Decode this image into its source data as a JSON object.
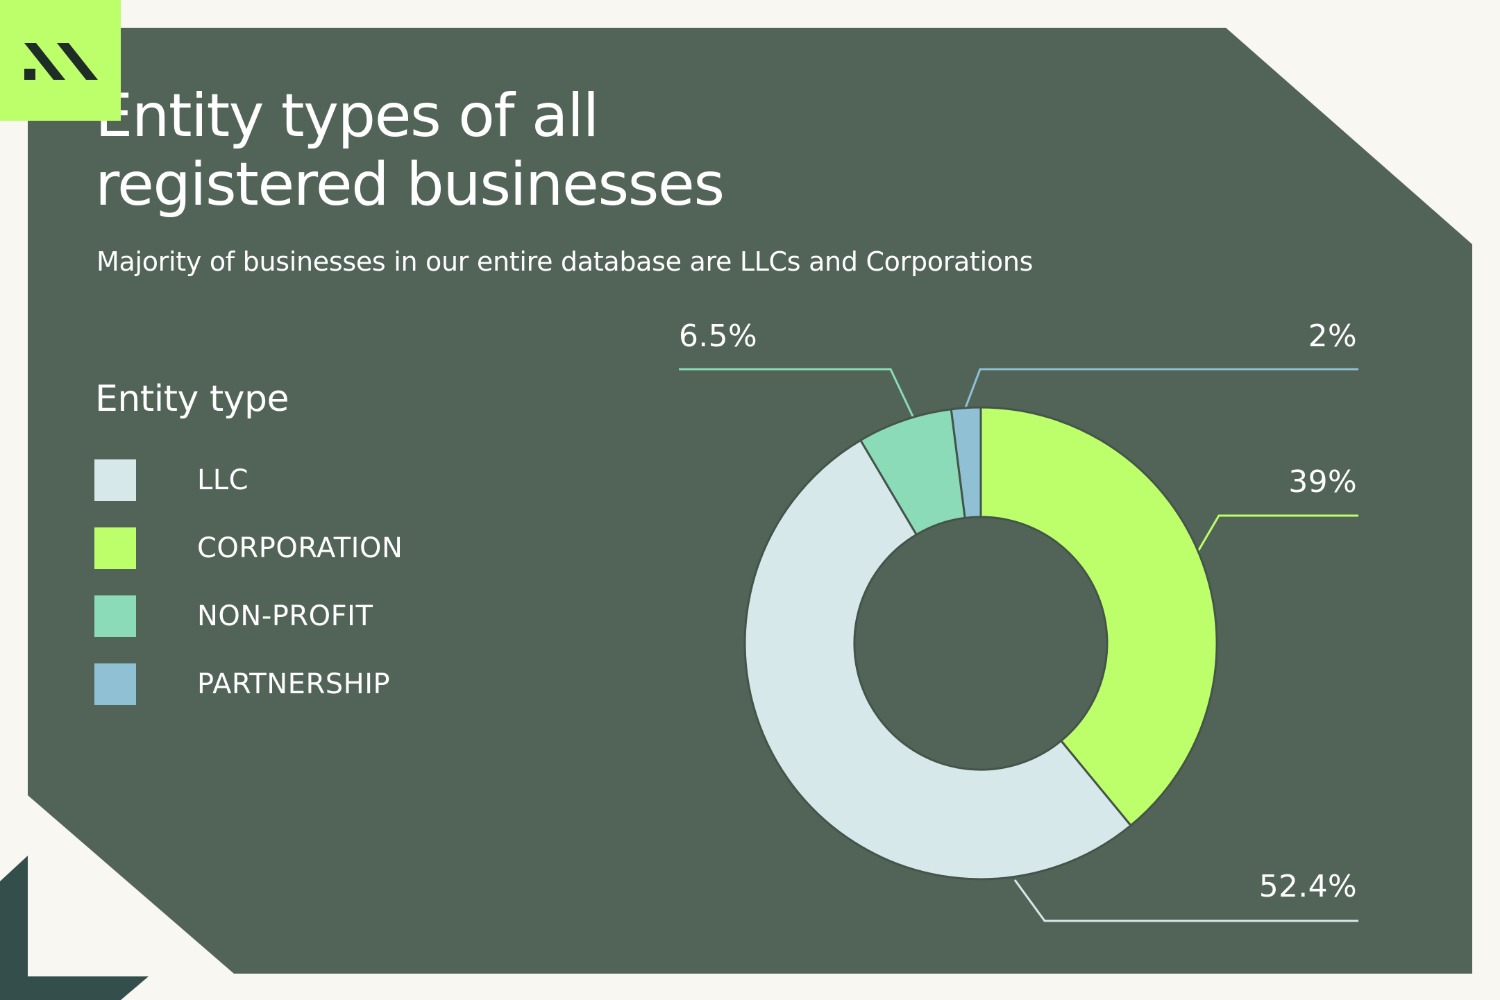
{
  "title": "Entity types of all registered businesses",
  "subtitle": "Majority of businesses in our entire database are LLCs and Corporations",
  "legend": {
    "title": "Entity type",
    "items": [
      {
        "label": "LLC",
        "color": "#d6e8ea"
      },
      {
        "label": "CORPORATION",
        "color": "#bdff6a"
      },
      {
        "label": "NON-PROFIT",
        "color": "#8bdbb8"
      },
      {
        "label": "PARTNERSHIP",
        "color": "#8fc0d4"
      }
    ]
  },
  "colors": {
    "page_background": "#f8f7f2",
    "panel": "#526457",
    "logo_tile": "#bdff6a",
    "logo_shadow": "#334e4b",
    "text": "#ffffff"
  },
  "logo": {
    "icon": "brand-logo-icon"
  },
  "chart_data": {
    "type": "pie",
    "style": "donut",
    "start": "12 o'clock, clockwise",
    "slices": [
      {
        "category": "CORPORATION",
        "value": 39,
        "label": "39%",
        "color": "#bdff6a"
      },
      {
        "category": "LLC",
        "value": 52.4,
        "label": "52.4%",
        "color": "#d6e8ea"
      },
      {
        "category": "NON-PROFIT",
        "value": 6.5,
        "label": "6.5%",
        "color": "#8bdbb8"
      },
      {
        "category": "PARTNERSHIP",
        "value": 2,
        "label": "2%",
        "color": "#8fc0d4"
      }
    ]
  }
}
